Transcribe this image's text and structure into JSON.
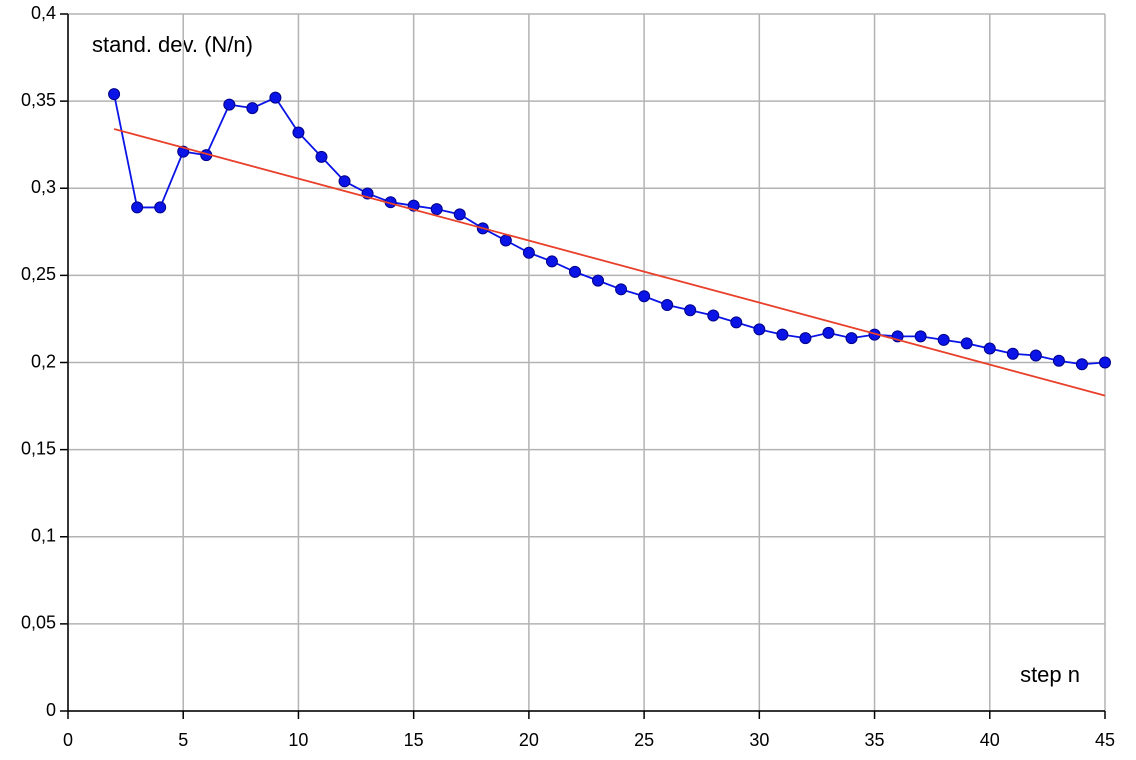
{
  "chart_data": {
    "type": "line",
    "ylabel": "stand. dev. (N/n)",
    "xlabel": "step n",
    "xlim": [
      0,
      45
    ],
    "xticks": [
      0,
      5,
      10,
      15,
      20,
      25,
      30,
      35,
      40,
      45
    ],
    "ylim": [
      0,
      0.4
    ],
    "yticks": [
      0,
      {
        "value": 0.05,
        "label": "0,05"
      },
      {
        "value": 0.1,
        "label": "0,1"
      },
      {
        "value": 0.15,
        "label": "0,15"
      },
      {
        "value": 0.2,
        "label": "0,2"
      },
      {
        "value": 0.25,
        "label": "0,25"
      },
      {
        "value": 0.3,
        "label": "0,3"
      },
      {
        "value": 0.35,
        "label": "0,35"
      },
      {
        "value": 0.4,
        "label": "0,4"
      }
    ],
    "grid": true,
    "series": [
      {
        "color": "#0a14e6",
        "markers": true,
        "x": [
          2,
          3,
          4,
          5,
          6,
          7,
          8,
          9,
          10,
          11,
          12,
          13,
          14,
          15,
          16,
          17,
          18,
          19,
          20,
          21,
          22,
          23,
          24,
          25,
          26,
          27,
          28,
          29,
          30,
          31,
          32,
          33,
          34,
          35,
          36,
          37,
          38,
          39,
          40,
          41,
          42,
          43,
          44,
          45
        ],
        "values": [
          0.354,
          0.289,
          0.289,
          0.321,
          0.319,
          0.348,
          0.346,
          0.352,
          0.332,
          0.318,
          0.304,
          0.297,
          0.292,
          0.29,
          0.288,
          0.285,
          0.277,
          0.27,
          0.263,
          0.258,
          0.252,
          0.247,
          0.242,
          0.238,
          0.233,
          0.23,
          0.227,
          0.223,
          0.219,
          0.216,
          0.214,
          0.217,
          0.214,
          0.216,
          0.215,
          0.215,
          0.213,
          0.211,
          0.208,
          0.205,
          0.204,
          0.201,
          0.199,
          0.2
        ]
      },
      {
        "color": "#e8402a",
        "markers": false,
        "x": [
          2,
          45
        ],
        "values": [
          0.334,
          0.181
        ]
      }
    ]
  }
}
